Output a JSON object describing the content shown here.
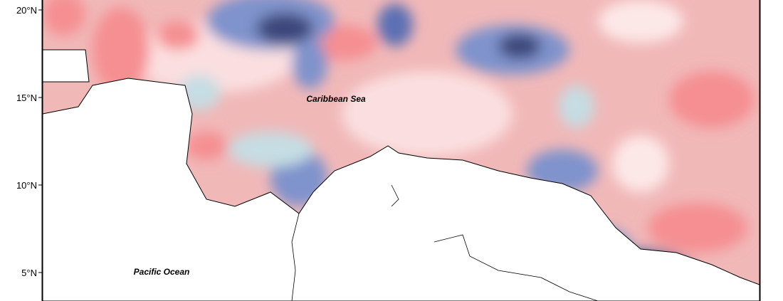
{
  "map": {
    "latitude_ticks": [
      "20°N",
      "15°N",
      "10°N",
      "5°N"
    ],
    "labels": [
      "Caribbean Sea",
      "Pacific Ocean"
    ]
  }
}
